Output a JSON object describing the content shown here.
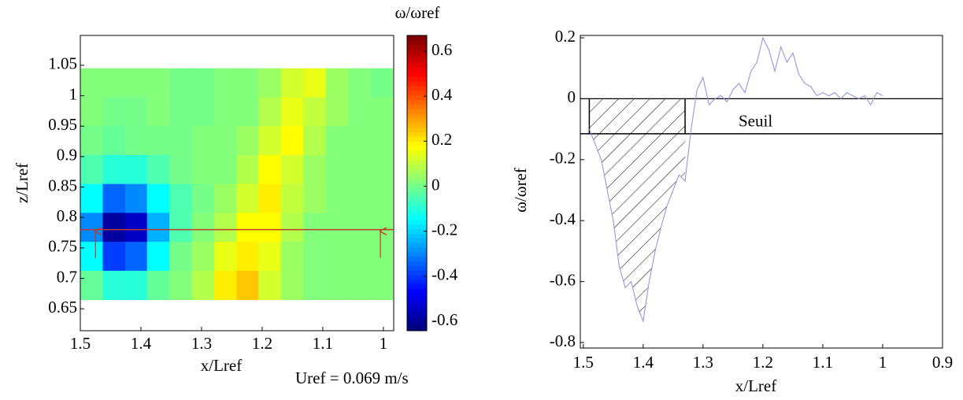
{
  "chart_data": [
    {
      "type": "heatmap",
      "xlabel": "x/Lref",
      "ylabel": "z/Lref",
      "colorbar_label": "ω/ωref",
      "annotation": "Uref = 0.069 m/s",
      "colormap": "jet",
      "xlim": [
        1.5,
        0.983
      ],
      "ylim": [
        0.614,
        1.099
      ],
      "xticks": [
        1.5,
        1.4,
        1.3,
        1.2,
        1.1,
        1
      ],
      "yticks": [
        0.65,
        0.7,
        0.75,
        0.8,
        0.85,
        0.9,
        0.95,
        1,
        1.05
      ],
      "clim": [
        -0.642,
        0.67
      ],
      "cticks": [
        -0.6,
        -0.4,
        -0.2,
        0,
        0.2,
        0.4,
        0.6
      ],
      "x_edges": [
        1.5,
        1.463,
        1.426,
        1.39,
        1.353,
        1.316,
        1.279,
        1.242,
        1.206,
        1.169,
        1.132,
        1.095,
        1.058,
        1.022,
        0.985
      ],
      "z_edges": [
        1.045,
        0.9975,
        0.95,
        0.9025,
        0.855,
        0.8075,
        0.76,
        0.7125,
        0.665
      ],
      "values": [
        [
          0.02,
          0.02,
          0.02,
          0.02,
          0.0,
          0.0,
          0.02,
          0.02,
          0.05,
          0.12,
          0.15,
          0.05,
          0.02,
          0.0
        ],
        [
          0.02,
          0.0,
          0.0,
          0.02,
          0.0,
          0.0,
          0.02,
          0.02,
          0.08,
          0.15,
          0.1,
          0.05,
          0.02,
          0.02
        ],
        [
          0.0,
          -0.02,
          0.0,
          0.0,
          0.0,
          0.02,
          0.02,
          0.05,
          0.12,
          0.18,
          0.08,
          0.02,
          0.02,
          0.02
        ],
        [
          -0.05,
          -0.1,
          -0.1,
          -0.05,
          0.0,
          0.02,
          0.02,
          0.08,
          0.18,
          0.12,
          0.05,
          0.02,
          0.02,
          0.02
        ],
        [
          -0.15,
          -0.35,
          -0.3,
          -0.15,
          -0.05,
          0.0,
          0.05,
          0.12,
          0.2,
          0.1,
          0.05,
          0.02,
          0.02,
          0.02
        ],
        [
          -0.3,
          -0.6,
          -0.55,
          -0.25,
          -0.05,
          0.02,
          0.08,
          0.18,
          0.18,
          0.08,
          0.02,
          0.02,
          0.02,
          0.02
        ],
        [
          -0.15,
          -0.4,
          -0.35,
          -0.15,
          0.0,
          0.05,
          0.15,
          0.2,
          0.15,
          0.05,
          0.02,
          0.02,
          0.02,
          0.02
        ],
        [
          -0.02,
          -0.1,
          -0.1,
          -0.02,
          0.02,
          0.08,
          0.2,
          0.25,
          0.12,
          0.05,
          0.02,
          0.02,
          0.02,
          0.02
        ]
      ],
      "profile_z": 0.78,
      "profile_color": "#c0392b",
      "arrow_x": [
        1.475,
        1.005
      ]
    },
    {
      "type": "line",
      "xlabel": "x/Lref",
      "ylabel": "ω/ωref",
      "xlim": [
        1.505,
        0.9
      ],
      "ylim": [
        -0.8,
        0.2
      ],
      "xticks": [
        1.5,
        1.4,
        1.3,
        1.2,
        1.1,
        1,
        0.9
      ],
      "yticks": [
        -0.8,
        -0.6,
        -0.4,
        -0.2,
        0,
        0.2
      ],
      "color": "#8a8fd8",
      "x": [
        1.49,
        1.47,
        1.45,
        1.44,
        1.43,
        1.42,
        1.41,
        1.4,
        1.39,
        1.38,
        1.37,
        1.36,
        1.35,
        1.34,
        1.33,
        1.32,
        1.31,
        1.3,
        1.29,
        1.28,
        1.27,
        1.26,
        1.25,
        1.24,
        1.23,
        1.22,
        1.21,
        1.2,
        1.19,
        1.18,
        1.17,
        1.16,
        1.15,
        1.14,
        1.13,
        1.12,
        1.11,
        1.1,
        1.09,
        1.08,
        1.07,
        1.06,
        1.05,
        1.04,
        1.03,
        1.02,
        1.01,
        1.0
      ],
      "values": [
        -0.1,
        -0.2,
        -0.4,
        -0.55,
        -0.62,
        -0.6,
        -0.68,
        -0.73,
        -0.6,
        -0.5,
        -0.42,
        -0.35,
        -0.3,
        -0.25,
        -0.27,
        -0.1,
        0.03,
        0.07,
        -0.02,
        0.0,
        0.01,
        -0.01,
        0.03,
        0.05,
        0.02,
        0.09,
        0.12,
        0.2,
        0.16,
        0.09,
        0.17,
        0.12,
        0.15,
        0.08,
        0.05,
        0.04,
        0.01,
        0.02,
        0.01,
        0.02,
        0.0,
        0.02,
        0.01,
        0.0,
        0.01,
        -0.02,
        0.02,
        0.01
      ],
      "threshold": -0.115,
      "threshold_label": "Seuil",
      "hatch_x": [
        1.49,
        1.33
      ]
    }
  ]
}
